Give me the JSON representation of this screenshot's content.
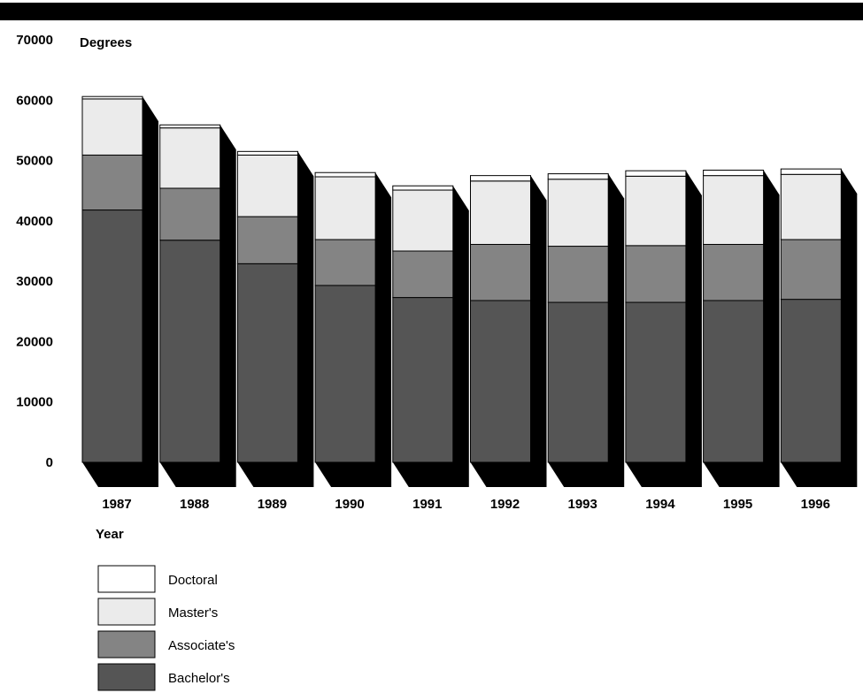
{
  "chart_data": {
    "type": "bar",
    "stacked": true,
    "categories": [
      "1987",
      "1988",
      "1989",
      "1990",
      "1991",
      "1992",
      "1993",
      "1994",
      "1995",
      "1996"
    ],
    "series": [
      {
        "name": "Bachelor's",
        "color": "#555555",
        "values": [
          41800,
          36800,
          32900,
          29300,
          27300,
          26800,
          26500,
          26500,
          26800,
          27000
        ]
      },
      {
        "name": "Associate's",
        "color": "#848484",
        "values": [
          9100,
          8600,
          7800,
          7600,
          7700,
          9300,
          9300,
          9400,
          9300,
          9900
        ]
      },
      {
        "name": "Master's",
        "color": "#ebebeb",
        "values": [
          9300,
          10000,
          10200,
          10400,
          10100,
          10500,
          11100,
          11500,
          11400,
          10800
        ]
      },
      {
        "name": "Doctoral",
        "color": "#ffffff",
        "values": [
          400,
          500,
          600,
          700,
          700,
          900,
          900,
          900,
          900,
          900
        ]
      }
    ],
    "ylabel": "Degrees",
    "xlabel": "Year",
    "ylim": [
      0,
      70000
    ],
    "yticks": [
      0,
      10000,
      20000,
      30000,
      40000,
      50000,
      60000,
      70000
    ],
    "grid": false,
    "legend": "bottom-left",
    "legend_order": [
      "Doctoral",
      "Master's",
      "Associate's",
      "Bachelor's"
    ]
  }
}
